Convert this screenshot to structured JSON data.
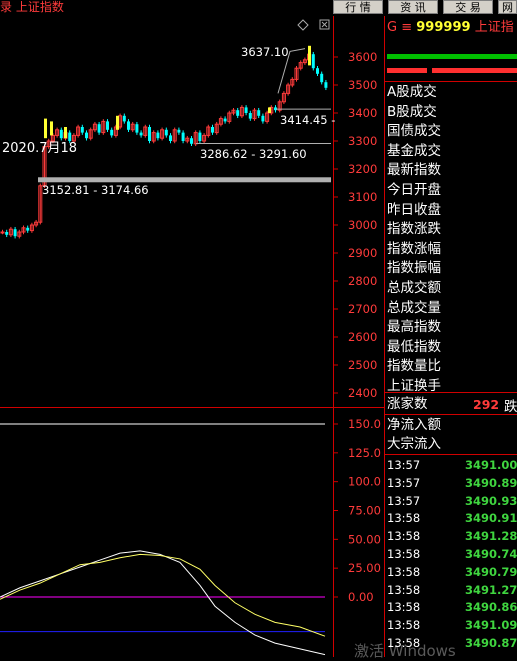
{
  "topbar": {
    "crumb": "录 上证指数",
    "buttons": [
      "行 情",
      "资 讯",
      "交 易",
      "网"
    ]
  },
  "chart": {
    "price_axis": [
      "3600",
      "3500",
      "3400",
      "3300",
      "3200",
      "3100",
      "3000",
      "2900",
      "2800",
      "2700",
      "2600",
      "2500",
      "2400"
    ],
    "indicator_axis": [
      "150.0",
      "125.0",
      "100.0",
      "75.00",
      "50.00",
      "25.00",
      "0.00"
    ],
    "annotations": {
      "high": "3637.10",
      "date": "2020.7月18",
      "zone1": "3152.81 - 3174.66",
      "zone2": "3286.62 - 3291.60",
      "zone3": "3414.45 -"
    },
    "colors": {
      "candle_up": "#ff3b3b",
      "candle_down": "#00ffff",
      "highlight": "#ffff33",
      "zero_line": "#ff00ff",
      "ref_line": "#2020ff"
    }
  },
  "panel": {
    "header": {
      "prefix": "G",
      "menu_icon": "≡",
      "code": "999999",
      "name": "上证指"
    },
    "labels": [
      "A股成交",
      "B股成交",
      "国债成交",
      "基金成交",
      "最新指数",
      "今日开盘",
      "昨日收盘",
      "指数涨跌",
      "指数涨幅",
      "指数振幅",
      "总成交额",
      "总成交量",
      "最高指数",
      "最低指数",
      "指数量比",
      "上证换手"
    ],
    "up_count_label": "涨家数",
    "up_count_value": "292",
    "down_label": "跌",
    "flow_labels": [
      "净流入额",
      "大宗流入"
    ],
    "ticks": [
      {
        "time": "13:57",
        "value": "3491.00"
      },
      {
        "time": "13:57",
        "value": "3490.89"
      },
      {
        "time": "13:57",
        "value": "3490.93"
      },
      {
        "time": "13:58",
        "value": "3490.91"
      },
      {
        "time": "13:58",
        "value": "3491.28"
      },
      {
        "time": "13:58",
        "value": "3490.74"
      },
      {
        "time": "13:58",
        "value": "3490.79"
      },
      {
        "time": "13:58",
        "value": "3491.27"
      },
      {
        "time": "13:58",
        "value": "3490.86"
      },
      {
        "time": "13:58",
        "value": "3491.09"
      },
      {
        "time": "13:58",
        "value": "3490.87"
      }
    ]
  },
  "watermark": "激活 Windows"
}
